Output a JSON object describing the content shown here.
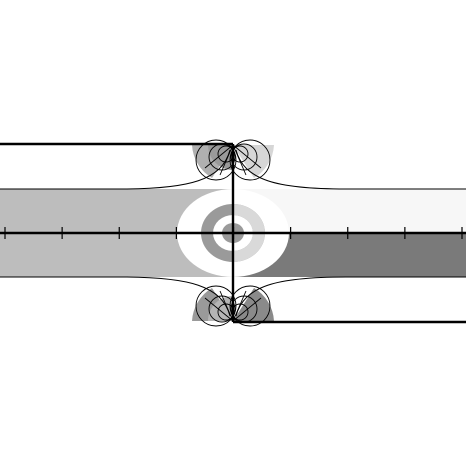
{
  "diagram": {
    "shades": {
      "light_gray": "#bdbdbd",
      "near_white": "#f7f7f7",
      "dark_gray": "#7a7a7a",
      "white": "#ffffff",
      "ring_gray": "#9a9a9a",
      "ink": "#000000"
    },
    "axis_tick_count": 9
  }
}
